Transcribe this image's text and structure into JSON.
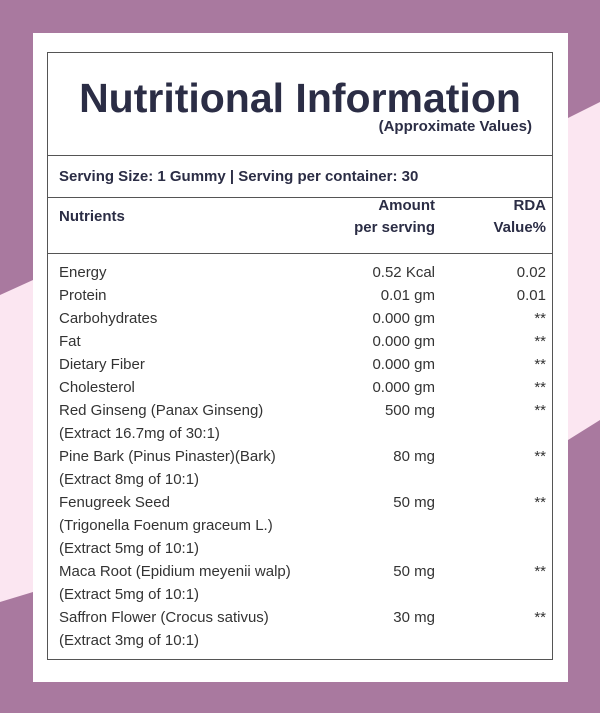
{
  "header": {
    "title": "Nutritional Information",
    "subtitle": "(Approximate Values)"
  },
  "serving": "Serving Size: 1 Gummy | Serving per container: 30",
  "table": {
    "columns": [
      [
        "Nutrients"
      ],
      [
        "Amount",
        "per serving"
      ],
      [
        "RDA",
        "Value%"
      ]
    ],
    "rows": [
      {
        "name": [
          "Energy"
        ],
        "amount": "0.52 Kcal",
        "rda": "0.02"
      },
      {
        "name": [
          "Protein"
        ],
        "amount": "0.01 gm",
        "rda": "0.01"
      },
      {
        "name": [
          "Carbohydrates"
        ],
        "amount": "0.000 gm",
        "rda": "**"
      },
      {
        "name": [
          "Fat"
        ],
        "amount": "0.000 gm",
        "rda": "**"
      },
      {
        "name": [
          "Dietary Fiber"
        ],
        "amount": "0.000 gm",
        "rda": "**"
      },
      {
        "name": [
          "Cholesterol"
        ],
        "amount": "0.000 gm",
        "rda": "**"
      },
      {
        "name": [
          "Red Ginseng (Panax Ginseng)",
          "(Extract 16.7mg of 30:1)"
        ],
        "amount": "500 mg",
        "rda": "**"
      },
      {
        "name": [
          "Pine Bark (Pinus Pinaster)(Bark)",
          "(Extract 8mg of 10:1)"
        ],
        "amount": "80 mg",
        "rda": "**"
      },
      {
        "name": [
          "Fenugreek Seed",
          "(Trigonella Foenum graceum L.)",
          "(Extract 5mg of 10:1)"
        ],
        "amount": "50 mg",
        "rda": "**"
      },
      {
        "name": [
          "Maca Root (Epidium meyenii walp)",
          "(Extract 5mg of 10:1)"
        ],
        "amount": "50 mg",
        "rda": "**"
      },
      {
        "name": [
          "Saffron Flower (Crocus sativus)",
          "(Extract 3mg of 10:1)"
        ],
        "amount": "30 mg",
        "rda": "**"
      }
    ]
  }
}
